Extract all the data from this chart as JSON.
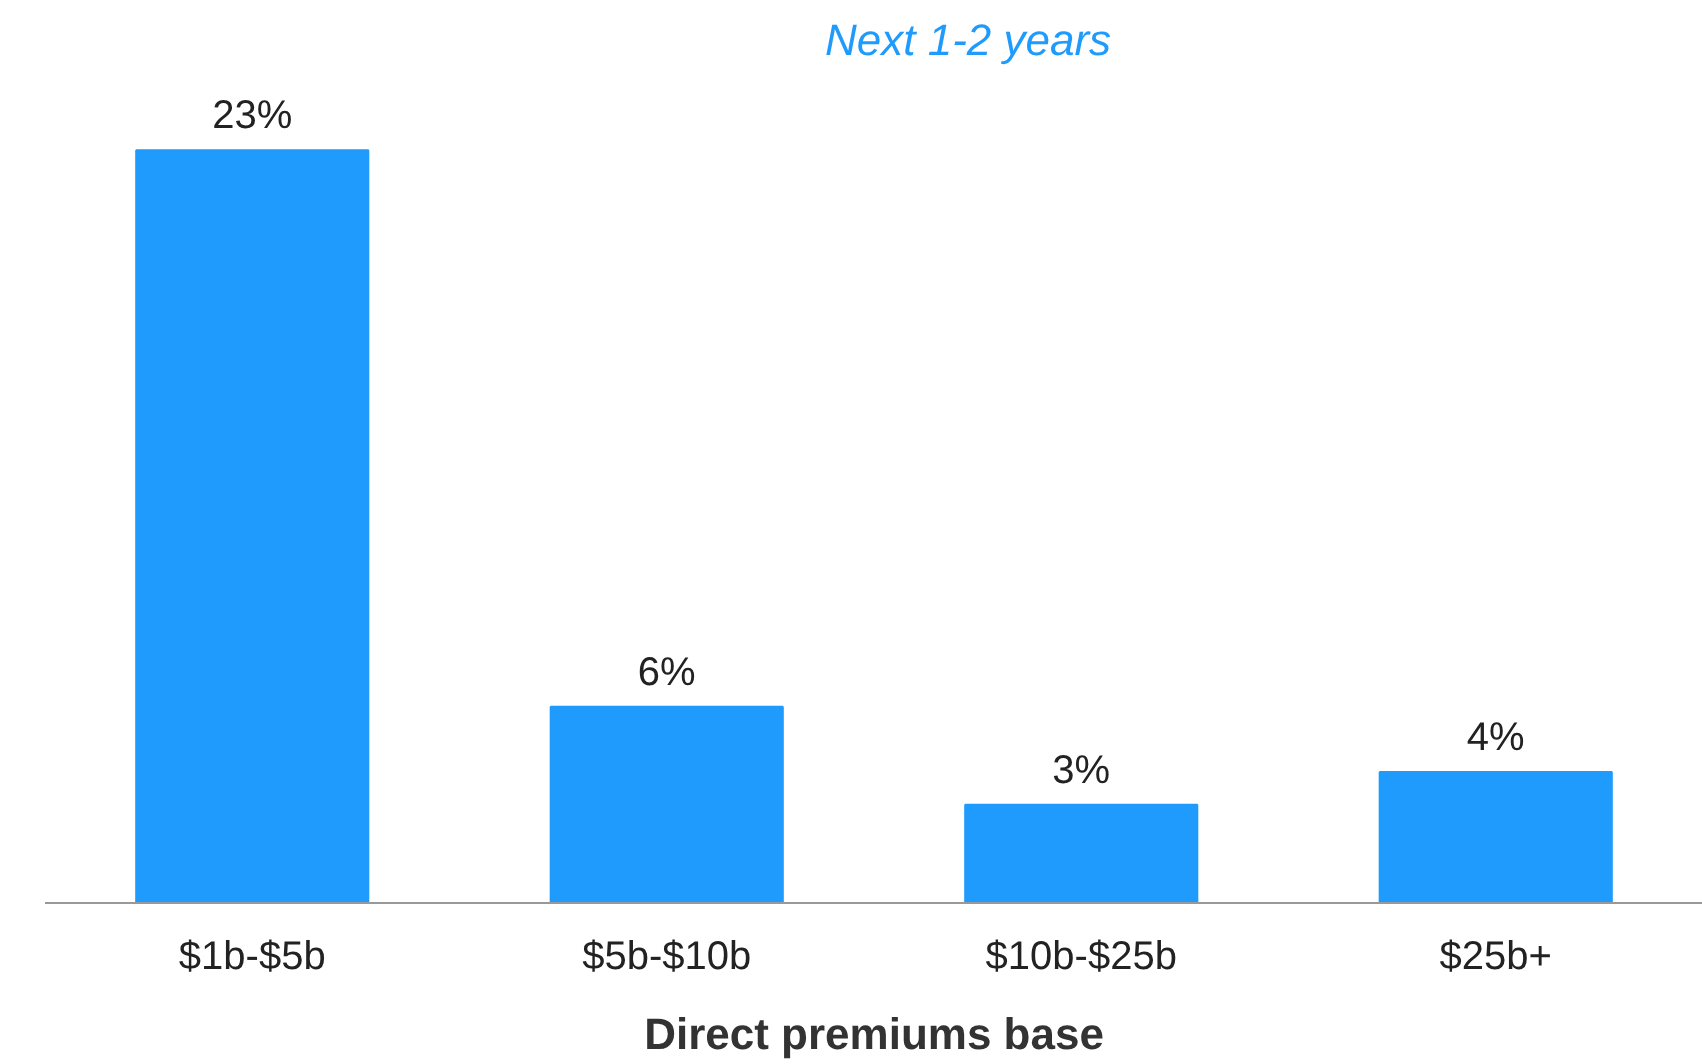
{
  "chart_data": {
    "type": "bar",
    "subtitle": "Next 1-2 years",
    "xlabel": "Direct premiums base",
    "categories": [
      "$1b-$5b",
      "$5b-$10b",
      "$10b-$25b",
      "$25b+"
    ],
    "values": [
      23,
      6,
      3,
      4
    ],
    "value_labels": [
      "23%",
      "6%",
      "3%",
      "4%"
    ],
    "color": "#1e9bfc",
    "grid": false
  }
}
